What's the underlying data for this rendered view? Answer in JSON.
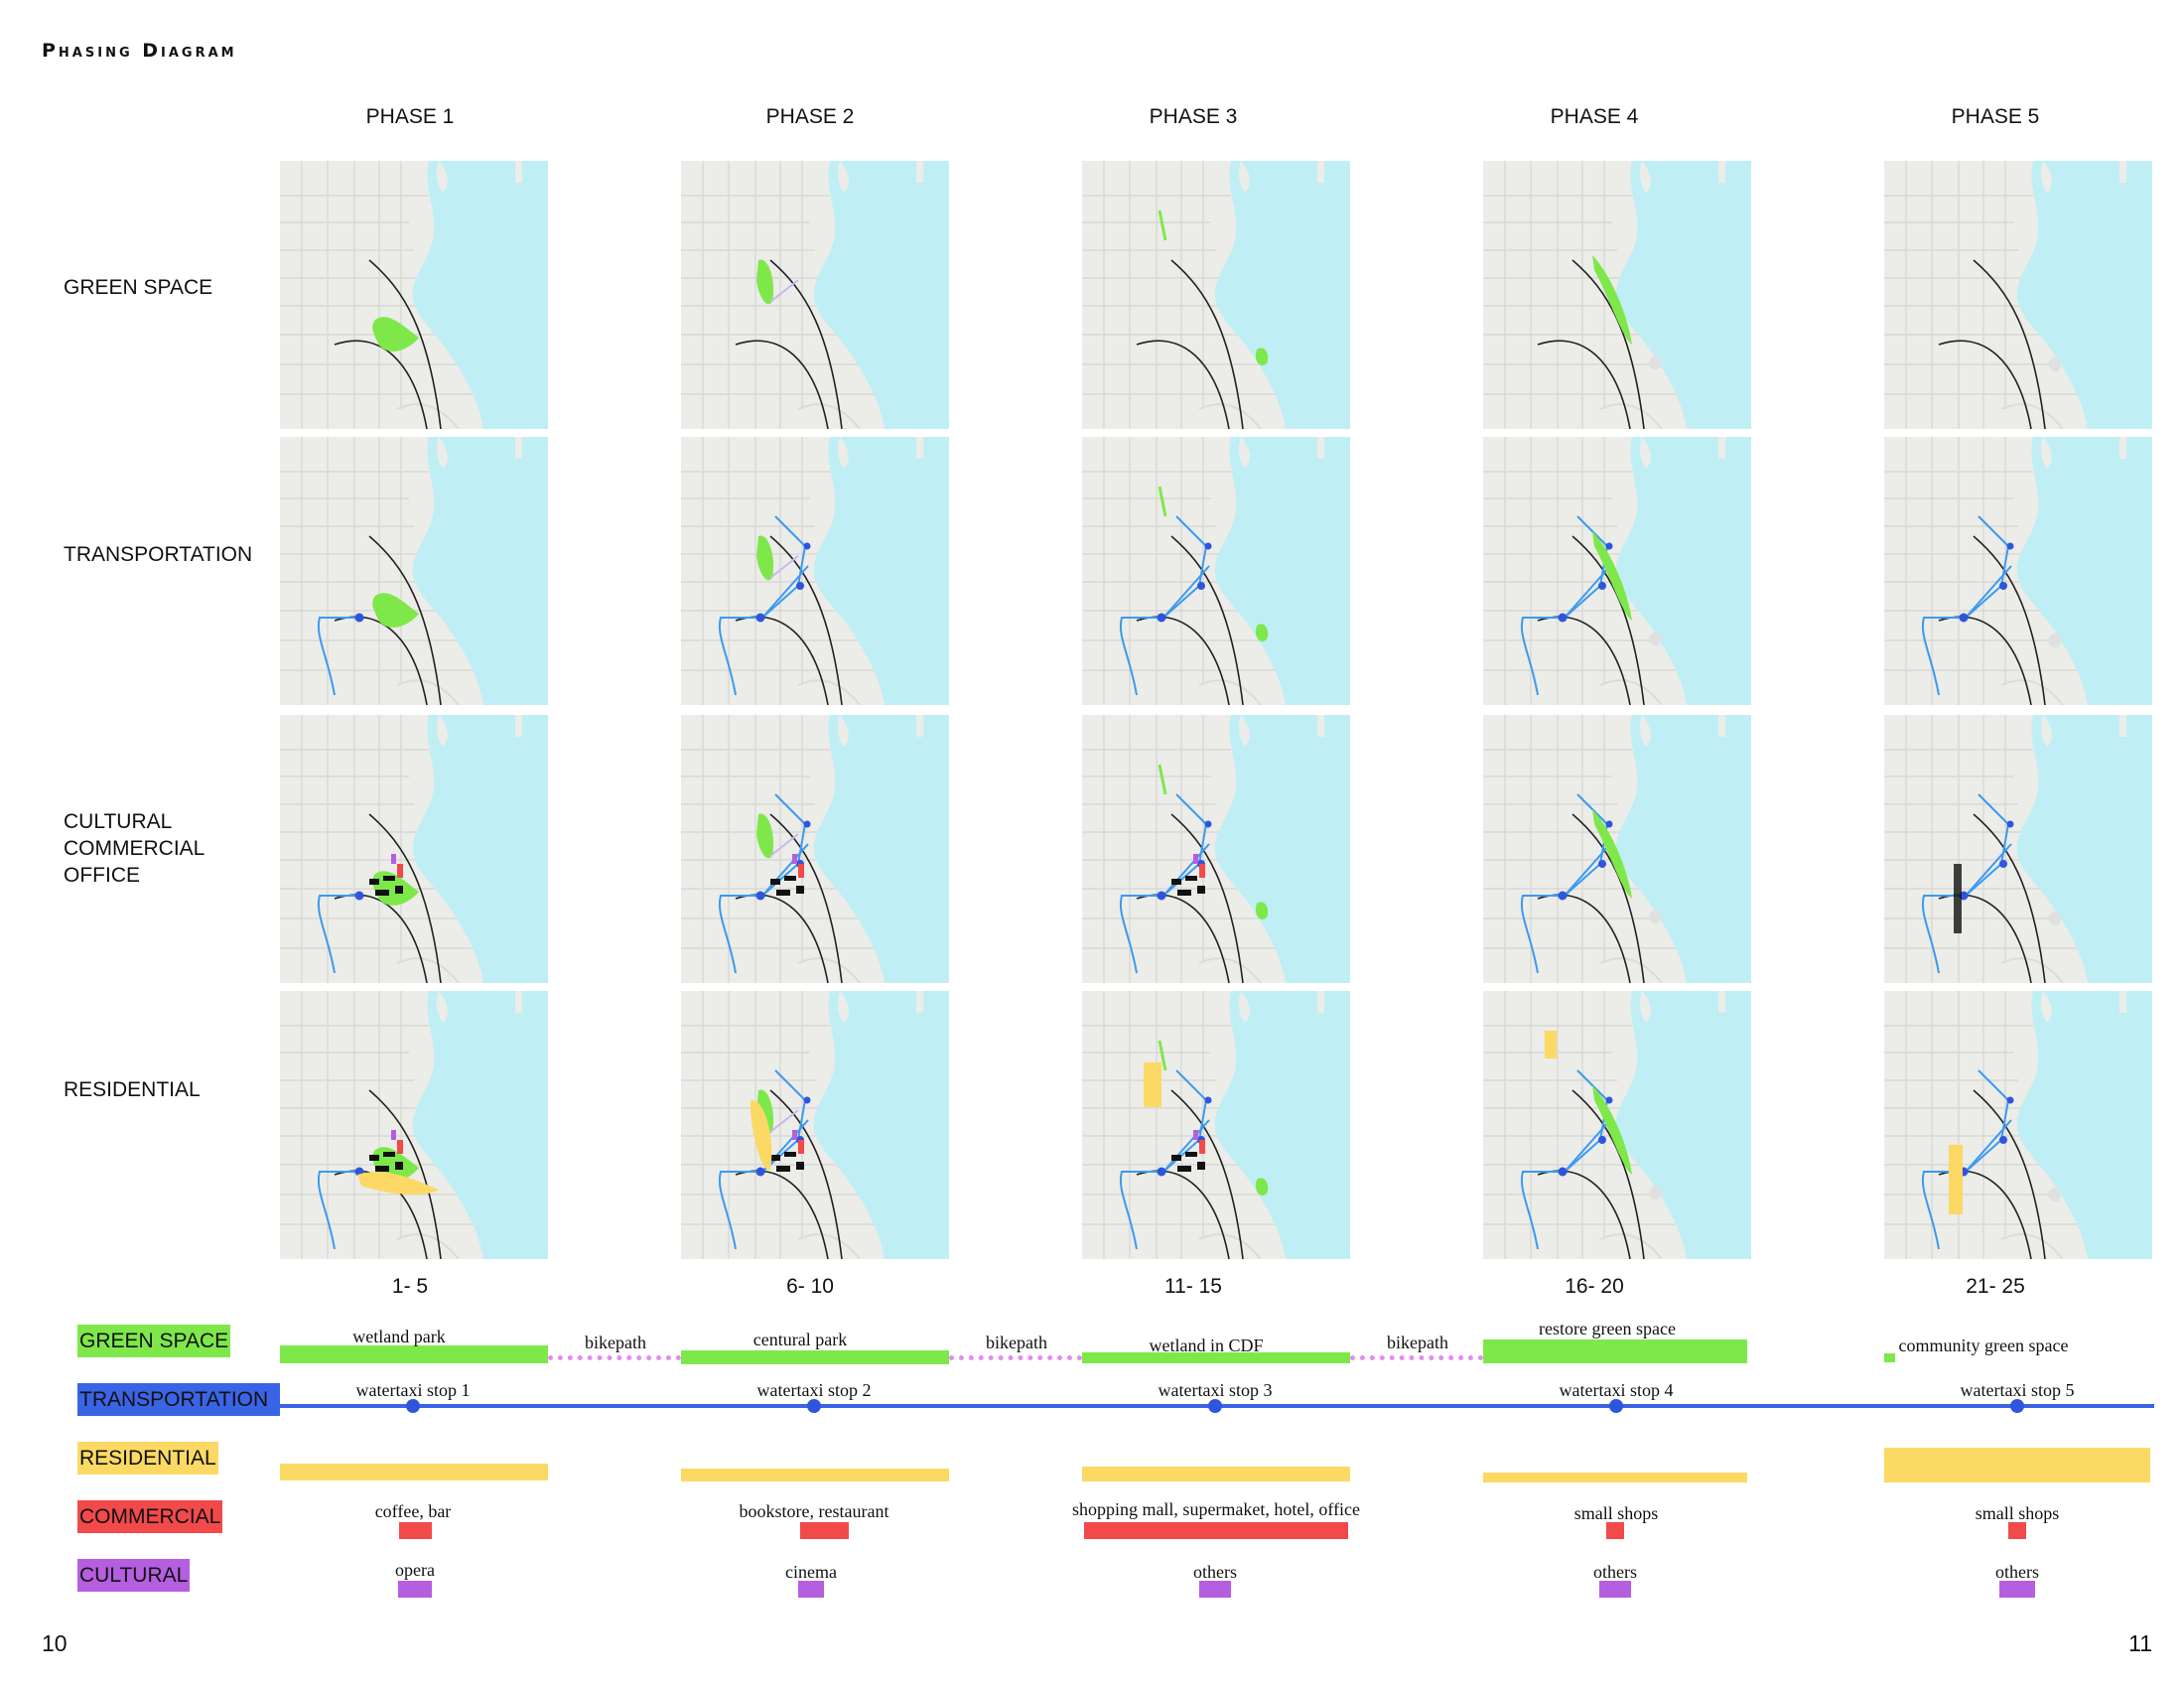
{
  "title": "Phasing Diagram",
  "phases": [
    {
      "label": "PHASE 1",
      "years": "1- 5",
      "green": "wetland park",
      "taxi": "watertaxi stop 1",
      "commercial": "coffee, bar",
      "cultural": "opera"
    },
    {
      "label": "PHASE 2",
      "years": "6- 10",
      "green": "centural park",
      "taxi": "watertaxi stop 2",
      "commercial": "bookstore, restaurant",
      "cultural": "cinema"
    },
    {
      "label": "PHASE 3",
      "years": "11- 15",
      "green": "wetland in CDF",
      "taxi": "watertaxi stop 3",
      "commercial": "shopping mall, supermaket, hotel, office",
      "cultural": "others"
    },
    {
      "label": "PHASE 4",
      "years": "16- 20",
      "green": "restore green space",
      "taxi": "watertaxi stop 4",
      "commercial": "small shops",
      "cultural": "others"
    },
    {
      "label": "PHASE 5",
      "years": "21- 25",
      "green": "community green space",
      "taxi": "watertaxi stop 5",
      "commercial": "small shops",
      "cultural": "others"
    }
  ],
  "rows": {
    "green": "GREEN SPACE",
    "transportation": "TRANSPORTATION",
    "cultural": [
      "CULTURAL",
      "COMMERCIAL",
      "OFFICE"
    ],
    "residential": "RESIDENTIAL"
  },
  "bikepath": "bikepath",
  "legend": {
    "green": {
      "label": "GREEN SPACE",
      "color": "#7ee84a"
    },
    "transportation": {
      "label": "TRANSPORTATION",
      "color": "#3a64e6"
    },
    "residential": {
      "label": "RESIDENTIAL",
      "color": "#fbd964"
    },
    "commercial": {
      "label": "COMMERCIAL",
      "color": "#f2494a"
    },
    "cultural": {
      "label": "CULTURAL",
      "color": "#b55ee0"
    }
  },
  "colors": {
    "water": "#bfeff4",
    "land": "#ecece9",
    "bike": "#e38cf0"
  },
  "page_left": "10",
  "page_right": "11"
}
